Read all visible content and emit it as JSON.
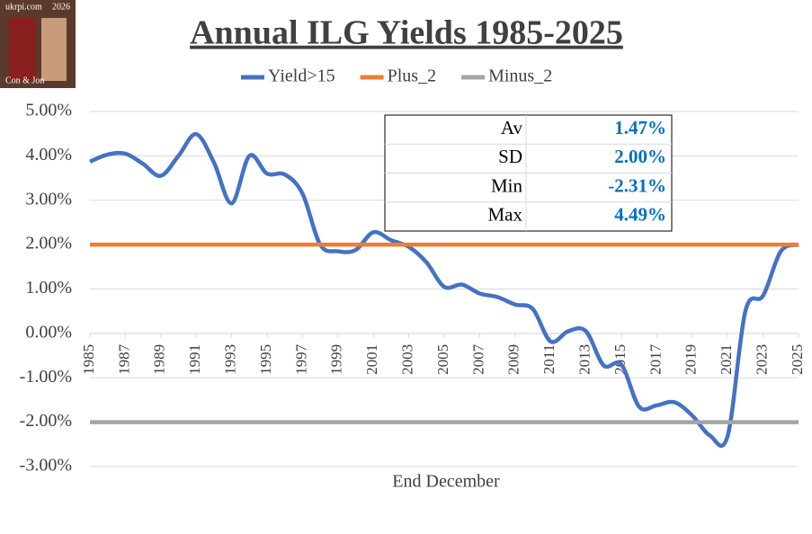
{
  "chart_data": {
    "type": "line",
    "title": "Annual ILG Yields 1985-2025",
    "x_label": "End December",
    "logo": {
      "site": "ukrpi.com",
      "year": "2026",
      "credit": "Con & Jon"
    },
    "x": [
      1985,
      1986,
      1987,
      1988,
      1989,
      1990,
      1991,
      1992,
      1993,
      1994,
      1995,
      1996,
      1997,
      1998,
      1999,
      2000,
      2001,
      2002,
      2003,
      2004,
      2005,
      2006,
      2007,
      2008,
      2009,
      2010,
      2011,
      2012,
      2013,
      2014,
      2015,
      2016,
      2017,
      2018,
      2019,
      2020,
      2021,
      2022,
      2023,
      2024,
      2025
    ],
    "series": [
      {
        "name": "Yield>15",
        "color": "#4472c4",
        "values": [
          3.87,
          4.03,
          4.05,
          3.82,
          3.55,
          4.0,
          4.49,
          3.85,
          2.93,
          4.0,
          3.6,
          3.58,
          3.15,
          2.0,
          1.85,
          1.88,
          2.28,
          2.1,
          1.95,
          1.6,
          1.05,
          1.1,
          0.9,
          0.82,
          0.65,
          0.55,
          -0.18,
          0.05,
          0.05,
          -0.72,
          -0.7,
          -1.65,
          -1.62,
          -1.55,
          -1.85,
          -2.3,
          -2.31,
          0.5,
          0.85,
          1.85,
          2.0
        ]
      },
      {
        "name": "Plus_2",
        "color": "#ed7d31",
        "values": [
          2,
          2,
          2,
          2,
          2,
          2,
          2,
          2,
          2,
          2,
          2,
          2,
          2,
          2,
          2,
          2,
          2,
          2,
          2,
          2,
          2,
          2,
          2,
          2,
          2,
          2,
          2,
          2,
          2,
          2,
          2,
          2,
          2,
          2,
          2,
          2,
          2,
          2,
          2,
          2,
          2
        ]
      },
      {
        "name": "Minus_2",
        "color": "#a5a5a5",
        "values": [
          -2,
          -2,
          -2,
          -2,
          -2,
          -2,
          -2,
          -2,
          -2,
          -2,
          -2,
          -2,
          -2,
          -2,
          -2,
          -2,
          -2,
          -2,
          -2,
          -2,
          -2,
          -2,
          -2,
          -2,
          -2,
          -2,
          -2,
          -2,
          -2,
          -2,
          -2,
          -2,
          -2,
          -2,
          -2,
          -2,
          -2,
          -2,
          -2,
          -2,
          -2
        ]
      }
    ],
    "xlim": [
      1985,
      2025
    ],
    "xticks": [
      1985,
      1987,
      1989,
      1991,
      1993,
      1995,
      1997,
      1999,
      2001,
      2003,
      2005,
      2007,
      2009,
      2011,
      2013,
      2015,
      2017,
      2019,
      2021,
      2023,
      2025
    ],
    "ylim": [
      -3,
      5
    ],
    "yticks": [
      {
        "value": -3,
        "label": "-3.00%"
      },
      {
        "value": -2,
        "label": "-2.00%"
      },
      {
        "value": -1,
        "label": "-1.00%"
      },
      {
        "value": 0,
        "label": "0.00%"
      },
      {
        "value": 1,
        "label": "1.00%"
      },
      {
        "value": 2,
        "label": "2.00%"
      },
      {
        "value": 3,
        "label": "3.00%"
      },
      {
        "value": 4,
        "label": "4.00%"
      },
      {
        "value": 5,
        "label": "5.00%"
      }
    ],
    "grid": true,
    "legend": "top",
    "stats": [
      {
        "label": "Av",
        "value": "1.47%"
      },
      {
        "label": "SD",
        "value": "2.00%"
      },
      {
        "label": "Min",
        "value": "-2.31%"
      },
      {
        "label": "Max",
        "value": "4.49%"
      }
    ]
  }
}
